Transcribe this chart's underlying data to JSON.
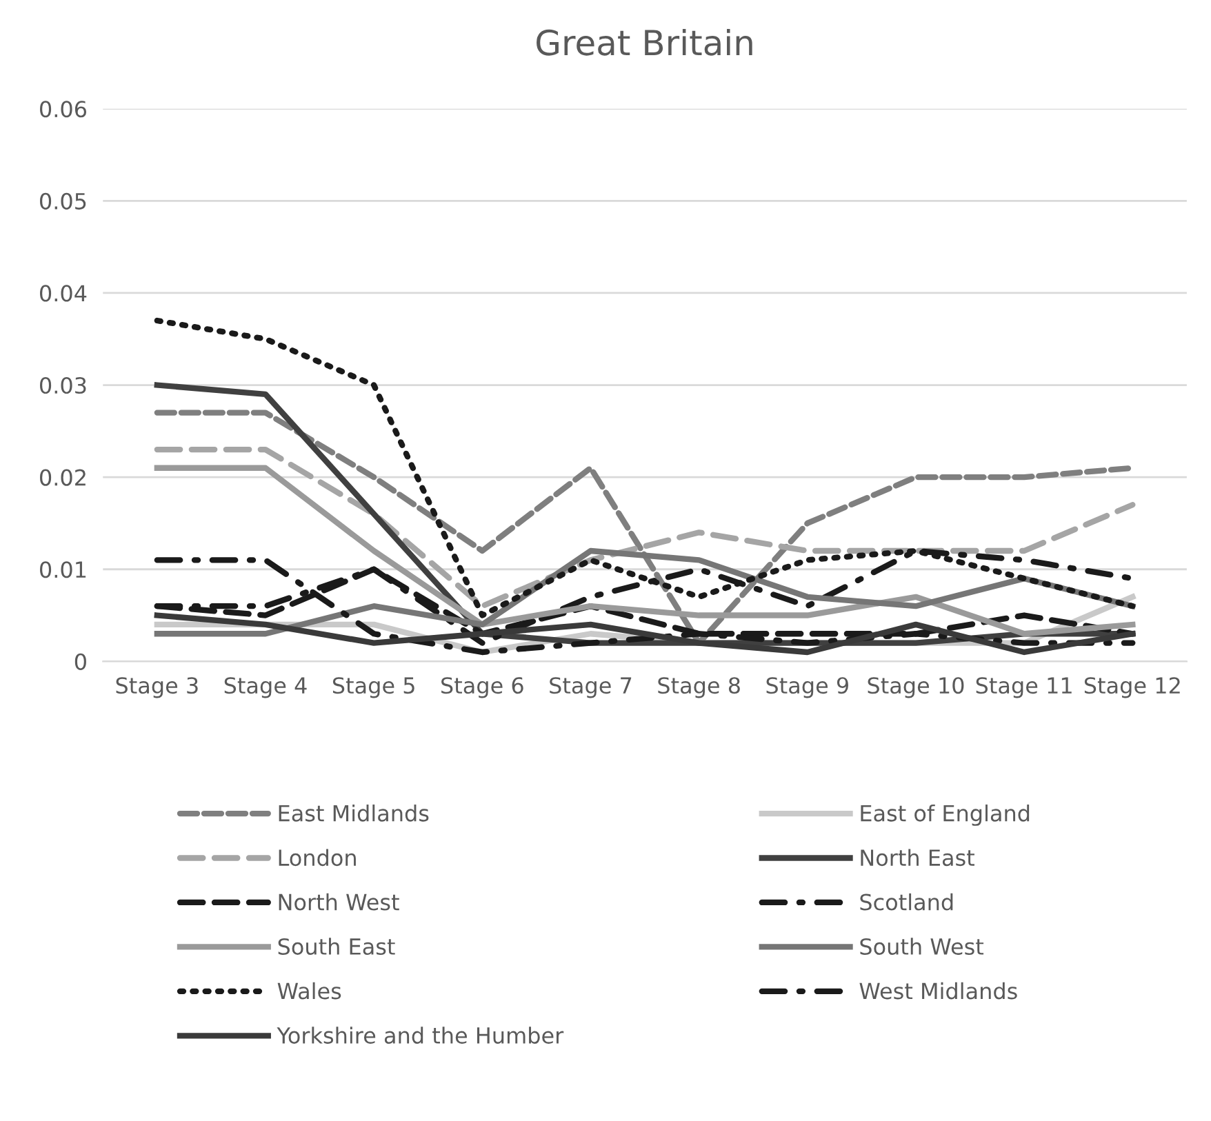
{
  "chart_data": {
    "type": "line",
    "title": "Great Britain",
    "categories": [
      "Stage 3",
      "Stage 4",
      "Stage 5",
      "Stage 6",
      "Stage 7",
      "Stage 8",
      "Stage 9",
      "Stage 10",
      "Stage 11",
      "Stage 12"
    ],
    "ylim": [
      0,
      0.06
    ],
    "yticks": [
      {
        "value": 0,
        "label": "0"
      },
      0.01,
      0.02,
      0.03,
      0.04,
      0.05,
      0.06
    ],
    "grid": "y",
    "legend": "bottom",
    "marker": "none",
    "series": [
      {
        "name": "East Midlands",
        "color": "#7f7f7f",
        "line_style": "dashed",
        "values": [
          0.027,
          0.027,
          0.02,
          0.012,
          0.021,
          0.002,
          0.015,
          0.02,
          0.02,
          0.021
        ]
      },
      {
        "name": "East of England",
        "color": "#c9c9c9",
        "line_style": "solid",
        "values": [
          0.004,
          0.004,
          0.004,
          0.001,
          0.003,
          0.002,
          0.002,
          0.002,
          0.002,
          0.007
        ]
      },
      {
        "name": "London",
        "color": "#a5a5a5",
        "line_style": "longdash",
        "values": [
          0.023,
          0.023,
          0.016,
          0.006,
          0.011,
          0.014,
          0.012,
          0.012,
          0.012,
          0.017
        ]
      },
      {
        "name": "North East",
        "color": "#404040",
        "line_style": "solid",
        "values": [
          0.03,
          0.029,
          0.016,
          0.003,
          0.002,
          0.002,
          0.002,
          0.002,
          0.003,
          0.003
        ]
      },
      {
        "name": "North West",
        "color": "#1a1a1a",
        "line_style": "longdash",
        "values": [
          0.006,
          0.005,
          0.01,
          0.003,
          0.006,
          0.003,
          0.003,
          0.003,
          0.005,
          0.003
        ]
      },
      {
        "name": "Scotland",
        "color": "#1a1a1a",
        "line_style": "dashdot",
        "values": [
          0.006,
          0.006,
          0.01,
          0.002,
          0.007,
          0.01,
          0.006,
          0.012,
          0.011,
          0.009
        ]
      },
      {
        "name": "South East",
        "color": "#9a9a9a",
        "line_style": "solid",
        "values": [
          0.021,
          0.021,
          0.012,
          0.004,
          0.006,
          0.005,
          0.005,
          0.007,
          0.003,
          0.004
        ]
      },
      {
        "name": "South West",
        "color": "#767676",
        "line_style": "solid",
        "values": [
          0.003,
          0.003,
          0.006,
          0.004,
          0.012,
          0.011,
          0.007,
          0.006,
          0.009,
          0.006
        ]
      },
      {
        "name": "Wales",
        "color": "#1a1a1a",
        "line_style": "dotted",
        "values": [
          0.037,
          0.035,
          0.03,
          0.005,
          0.011,
          0.007,
          0.011,
          0.012,
          0.009,
          0.006
        ]
      },
      {
        "name": "West Midlands",
        "color": "#1a1a1a",
        "line_style": "dashdot",
        "values": [
          0.011,
          0.011,
          0.003,
          0.001,
          0.002,
          0.003,
          0.002,
          0.003,
          0.002,
          0.002
        ]
      },
      {
        "name": "Yorkshire and the Humber",
        "color": "#3a3a3a",
        "line_style": "solid",
        "values": [
          0.005,
          0.004,
          0.002,
          0.003,
          0.004,
          0.002,
          0.001,
          0.004,
          0.001,
          0.003
        ]
      }
    ]
  }
}
